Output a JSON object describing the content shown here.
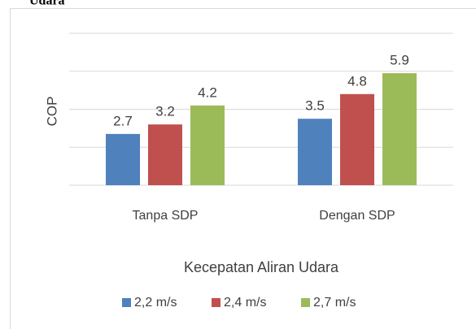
{
  "chart_data": {
    "type": "bar",
    "title": "Udara",
    "ylabel": "COP",
    "xlabel": "Kecepatan Aliran Udara",
    "categories": [
      "Tanpa SDP",
      "Dengan SDP"
    ],
    "series": [
      {
        "name": "2,2 m/s",
        "color": "#4f81bd",
        "values": [
          2.7,
          3.5
        ]
      },
      {
        "name": "2,4 m/s",
        "color": "#c0504d",
        "values": [
          3.2,
          4.8
        ]
      },
      {
        "name": "2,7 m/s",
        "color": "#9bbb59",
        "values": [
          4.2,
          5.9
        ]
      }
    ],
    "ylim": [
      0,
      8
    ],
    "yticks": [
      0,
      2,
      4,
      6,
      8
    ],
    "grid": true
  }
}
